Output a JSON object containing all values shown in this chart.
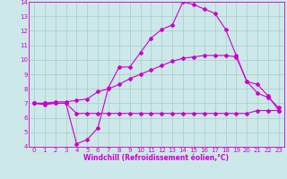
{
  "xlabel": "Windchill (Refroidissement éolien,°C)",
  "bg_color": "#cce8e8",
  "plot_bg_color": "#cce8e8",
  "xlabel_bg_color": "#8800aa",
  "line_color": "#cc00cc",
  "grid_color": "#aacccc",
  "axis_color": "#cc00cc",
  "xlim": [
    -0.5,
    23.5
  ],
  "ylim": [
    4,
    14
  ],
  "xticks": [
    0,
    1,
    2,
    3,
    4,
    5,
    6,
    7,
    8,
    9,
    10,
    11,
    12,
    13,
    14,
    15,
    16,
    17,
    18,
    19,
    20,
    21,
    22,
    23
  ],
  "yticks": [
    4,
    5,
    6,
    7,
    8,
    9,
    10,
    11,
    12,
    13,
    14
  ],
  "line1_x": [
    0,
    1,
    2,
    3,
    4,
    5,
    6,
    7,
    8,
    9,
    10,
    11,
    12,
    13,
    14,
    15,
    16,
    17,
    18,
    19,
    20,
    21,
    22,
    23
  ],
  "line1_y": [
    7.0,
    7.0,
    7.0,
    7.0,
    6.3,
    6.3,
    6.3,
    6.3,
    6.3,
    6.3,
    6.3,
    6.3,
    6.3,
    6.3,
    6.3,
    6.3,
    6.3,
    6.3,
    6.3,
    6.3,
    6.3,
    6.5,
    6.5,
    6.5
  ],
  "line2_x": [
    0,
    1,
    2,
    3,
    4,
    5,
    6,
    7,
    8,
    9,
    10,
    11,
    12,
    13,
    14,
    15,
    16,
    17,
    18,
    19,
    20,
    21,
    22,
    23
  ],
  "line2_y": [
    7.0,
    7.0,
    7.1,
    7.1,
    7.2,
    7.3,
    7.8,
    8.0,
    8.3,
    8.7,
    9.0,
    9.3,
    9.6,
    9.9,
    10.1,
    10.2,
    10.3,
    10.3,
    10.3,
    10.2,
    8.5,
    7.7,
    7.4,
    6.7
  ],
  "line3_x": [
    0,
    1,
    2,
    3,
    4,
    5,
    6,
    7,
    8,
    9,
    10,
    11,
    12,
    13,
    14,
    15,
    16,
    17,
    18,
    19,
    20,
    21,
    22,
    23
  ],
  "line3_y": [
    7.0,
    6.9,
    7.0,
    7.0,
    4.2,
    4.5,
    5.3,
    8.1,
    9.5,
    9.5,
    10.5,
    11.5,
    12.1,
    12.4,
    14.0,
    13.8,
    13.5,
    13.2,
    12.1,
    10.3,
    8.5,
    8.3,
    7.5,
    6.5
  ],
  "marker": "D",
  "markersize": 2.0,
  "linewidth": 0.8,
  "xlabel_color": "#ffffff",
  "tick_color": "#cc00cc",
  "tick_fontsize": 5,
  "xlabel_fontsize": 5.5
}
